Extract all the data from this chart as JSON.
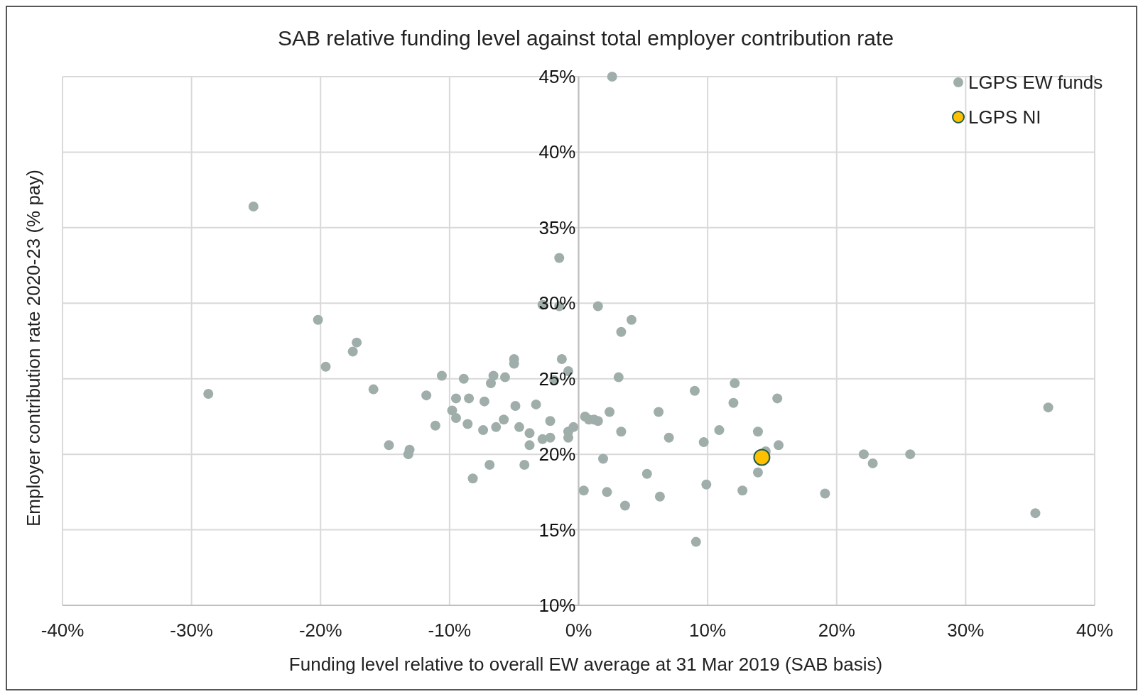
{
  "chart_data": {
    "type": "scatter",
    "title": "SAB relative funding level against total employer contribution rate",
    "xlabel": "Funding level relative to overall EW average at 31 Mar 2019 (SAB basis)",
    "ylabel": "Employer contribution rate 2020-23 (% pay)",
    "xlim": [
      -40,
      40
    ],
    "xticks": [
      {
        "value": -40,
        "label": "-40%"
      },
      {
        "value": -30,
        "label": "-30%"
      },
      {
        "value": -20,
        "label": "-20%"
      },
      {
        "value": -10,
        "label": "-10%"
      },
      {
        "value": 0,
        "label": "0%"
      },
      {
        "value": 10,
        "label": "10%"
      },
      {
        "value": 20,
        "label": "20%"
      },
      {
        "value": 30,
        "label": "30%"
      },
      {
        "value": 40,
        "label": "40%"
      }
    ],
    "ylim": [
      10,
      45
    ],
    "yticks": [
      {
        "value": 10,
        "label": "10%"
      },
      {
        "value": 15,
        "label": "15%"
      },
      {
        "value": 20,
        "label": "20%"
      },
      {
        "value": 25,
        "label": "25%"
      },
      {
        "value": 30,
        "label": "30%"
      },
      {
        "value": 35,
        "label": "35%"
      },
      {
        "value": 40,
        "label": "40%"
      },
      {
        "value": 45,
        "label": "45%"
      }
    ],
    "grid": true,
    "legend": "top right",
    "marker": "circle",
    "series": [
      {
        "name": "LGPS EW funds",
        "color": "#a0aeab",
        "x": [
          2.6,
          -25.2,
          -28.7,
          -20.2,
          -19.6,
          -17.2,
          -17.5,
          -15.9,
          -14.7,
          -13.1,
          -13.2,
          -11.8,
          -11.1,
          -10.6,
          -9.8,
          -9.5,
          -9.5,
          -8.9,
          -8.5,
          -8.6,
          -8.2,
          -7.4,
          -7.3,
          -6.9,
          -6.8,
          -6.6,
          -6.4,
          -5.7,
          -5.8,
          -5.0,
          -5.0,
          -4.9,
          -4.6,
          -4.2,
          -3.8,
          -3.3,
          -2.8,
          -2.8,
          -2.2,
          -2.2,
          -1.5,
          -1.5,
          -1.3,
          -0.8,
          -0.8,
          -0.8,
          -0.4,
          0.4,
          0.5,
          0.8,
          1.2,
          1.5,
          1.5,
          1.9,
          2.2,
          2.4,
          3.1,
          3.3,
          3.3,
          3.6,
          4.1,
          5.3,
          6.2,
          6.3,
          7.0,
          9.0,
          9.1,
          9.7,
          9.9,
          10.9,
          12.0,
          12.1,
          12.7,
          13.9,
          13.9,
          14.5,
          15.4,
          15.5,
          19.1,
          22.1,
          22.8,
          25.7,
          35.4,
          36.4,
          -1.9,
          -3.8
        ],
        "values": [
          45.0,
          36.4,
          24.0,
          28.9,
          25.8,
          27.4,
          26.8,
          24.3,
          20.6,
          20.3,
          20.0,
          23.9,
          21.9,
          25.2,
          22.9,
          23.7,
          22.4,
          25.0,
          23.7,
          22.0,
          18.4,
          21.6,
          23.5,
          19.3,
          24.7,
          25.2,
          21.8,
          25.1,
          22.3,
          26.3,
          26.0,
          23.2,
          21.8,
          19.3,
          21.4,
          23.3,
          29.9,
          21.0,
          22.2,
          21.1,
          33.0,
          29.8,
          26.3,
          25.5,
          21.5,
          21.1,
          21.8,
          17.6,
          22.5,
          22.3,
          22.3,
          22.2,
          29.8,
          19.7,
          17.5,
          22.8,
          25.1,
          28.1,
          21.5,
          16.6,
          28.9,
          18.7,
          22.8,
          17.2,
          21.1,
          24.2,
          14.2,
          20.8,
          18.0,
          21.6,
          23.4,
          24.7,
          17.6,
          21.5,
          18.8,
          20.2,
          23.7,
          20.6,
          17.4,
          20.0,
          19.4,
          20.0,
          16.1,
          23.1,
          24.9,
          20.6
        ]
      },
      {
        "name": "LGPS NI",
        "color": "#ffc000",
        "x": [
          14.2
        ],
        "values": [
          19.8
        ]
      }
    ]
  }
}
